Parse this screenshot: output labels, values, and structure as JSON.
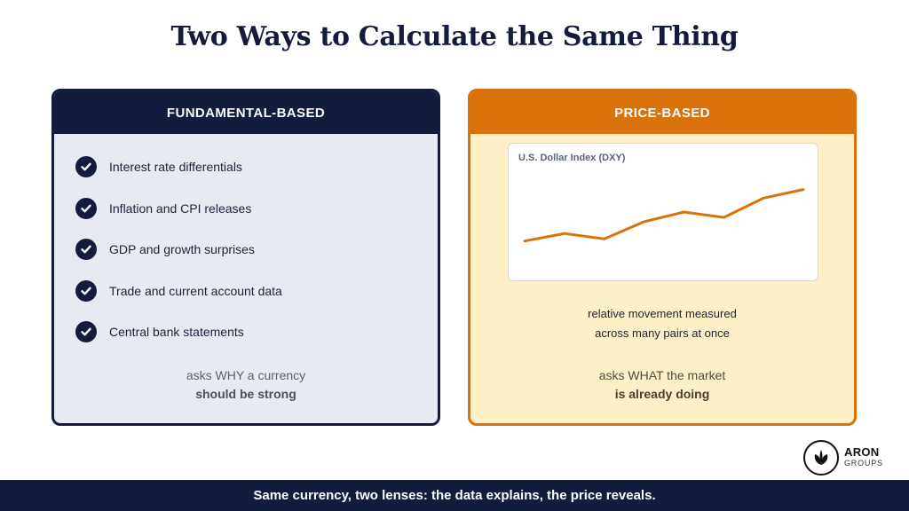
{
  "title": "Two Ways to Calculate the Same Thing",
  "left_card": {
    "header": "FUNDAMENTAL-BASED",
    "items": [
      "Interest rate differentials",
      "Inflation and CPI releases",
      "GDP and growth surprises",
      "Trade and current account data",
      "Central bank statements"
    ],
    "note_line1": "asks WHY a currency",
    "note_line2": "should be strong",
    "icon": "check-circle-icon"
  },
  "right_card": {
    "header": "PRICE-BASED",
    "desc_line1": "relative movement measured",
    "desc_line2": "across many pairs at once",
    "note_line1": "asks WHAT the market",
    "note_line2": "is already doing"
  },
  "chart_data": {
    "type": "line",
    "title": "U.S. Dollar Index (DXY)",
    "x": [
      1,
      2,
      3,
      4,
      5,
      6,
      7,
      8
    ],
    "values": [
      30,
      37,
      32,
      48,
      57,
      52,
      70,
      78
    ],
    "ylim": [
      0,
      100
    ],
    "grid": false,
    "axes_visible": false,
    "color": "#d9720b"
  },
  "footer": "Same currency, two lenses: the data explains, the price reveals.",
  "logo": {
    "name": "ARON",
    "sub": "GROUPS",
    "icon": "leaf-logo-icon"
  },
  "colors": {
    "navy": "#141c3d",
    "orange": "#d9720b",
    "left_bg": "#e8eaf2",
    "right_bg": "#fdf0c6"
  }
}
